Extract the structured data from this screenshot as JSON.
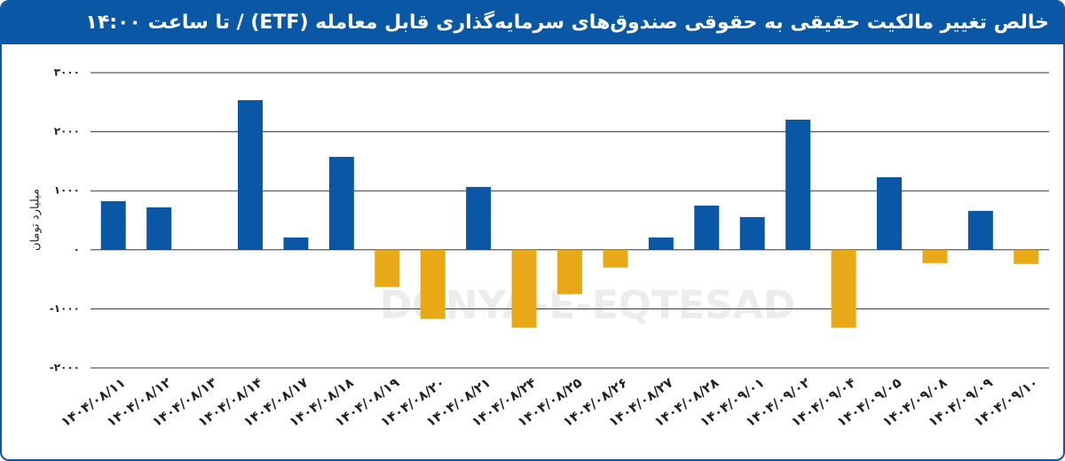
{
  "chart_data": {
    "type": "bar",
    "title": "خالص تغییر مالکیت حقیقی به حقوقی صندوق‌های سرمایه‌گذاری قابل معامله (ETF)  / تا ساعت ۱۴:۰۰",
    "y_label": "میلیارد تومان",
    "watermark": "DONYA-E-EQTESAD",
    "categories": [
      "۱۴۰۴/۰۸/۱۱",
      "۱۴۰۴/۰۸/۱۲",
      "۱۴۰۴/۰۸/۱۳",
      "۱۴۰۴/۰۸/۱۴",
      "۱۴۰۴/۰۸/۱۷",
      "۱۴۰۴/۰۸/۱۸",
      "۱۴۰۴/۰۸/۱۹",
      "۱۴۰۴/۰۸/۲۰",
      "۱۴۰۴/۰۸/۲۱",
      "۱۴۰۴/۰۸/۲۴",
      "۱۴۰۴/۰۸/۲۵",
      "۱۴۰۴/۰۸/۲۶",
      "۱۴۰۴/۰۸/۲۷",
      "۱۴۰۴/۰۸/۲۸",
      "۱۴۰۴/۰۹/۰۱",
      "۱۴۰۴/۰۹/۰۲",
      "۱۴۰۴/۰۹/۰۴",
      "۱۴۰۴/۰۹/۰۵",
      "۱۴۰۴/۰۹/۰۸",
      "۱۴۰۴/۰۹/۰۹",
      "۱۴۰۴/۰۹/۱۰"
    ],
    "values": [
      825,
      720,
      0,
      2535,
      210,
      1575,
      -630,
      -1170,
      1065,
      -1320,
      -750,
      -300,
      210,
      750,
      555,
      2205,
      -1320,
      1230,
      -225,
      660,
      -240
    ],
    "positive_color": "#0a58a5",
    "negative_color": "#e8a818",
    "ylim": [
      -2000,
      3000
    ],
    "yticks": [
      {
        "value": -2000,
        "label": "-۲۰۰۰"
      },
      {
        "value": -1000,
        "label": "-۱۰۰۰"
      },
      {
        "value": 0,
        "label": "۰"
      },
      {
        "value": 1000,
        "label": "۱۰۰۰"
      },
      {
        "value": 2000,
        "label": "۲۰۰۰"
      },
      {
        "value": 3000,
        "label": "۳۰۰۰"
      }
    ],
    "grid": true
  }
}
